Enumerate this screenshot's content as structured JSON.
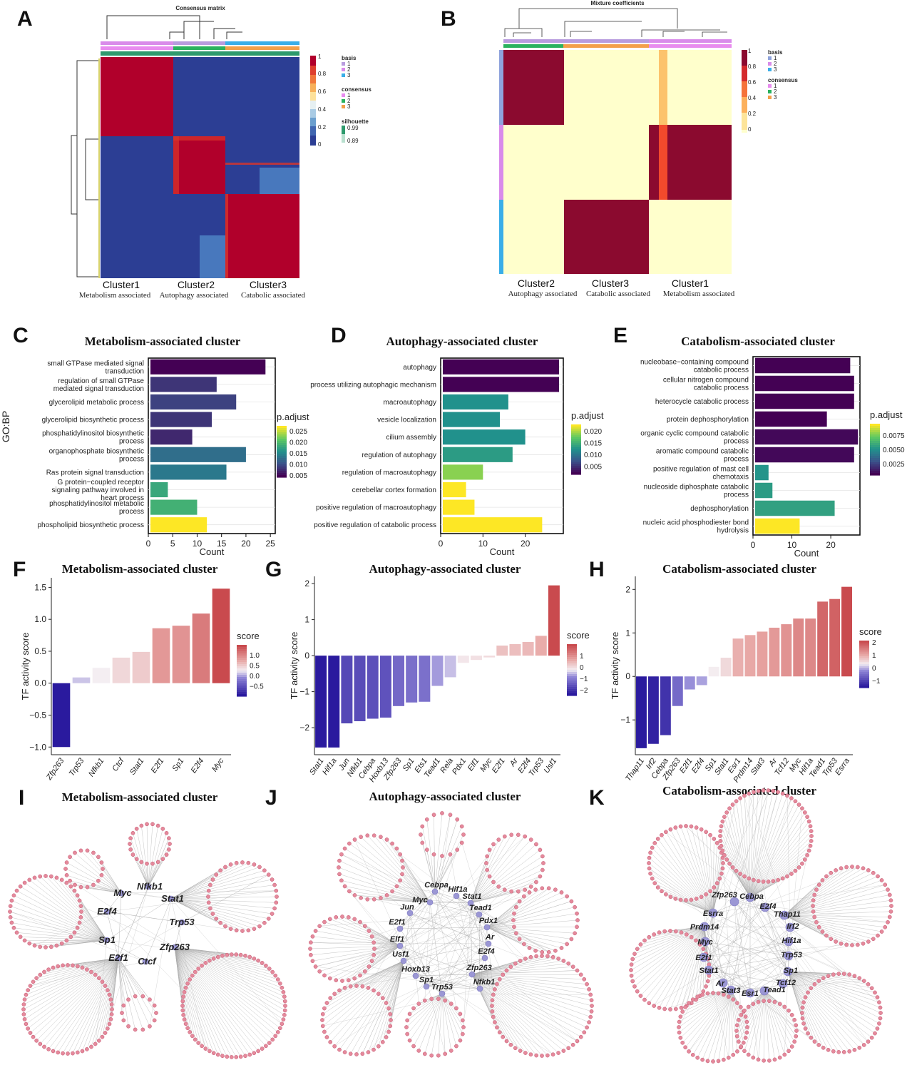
{
  "panels": {
    "A": "A",
    "B": "B",
    "C": "C",
    "D": "D",
    "E": "E",
    "F": "F",
    "G": "G",
    "H": "H",
    "I": "I",
    "J": "J",
    "K": "K"
  },
  "colors": {
    "heatBlue": "#2c3e94",
    "heatRed": "#b1002b",
    "heatCream": "#ffffcc",
    "heatDarkRed": "#8b0a2f",
    "nodeTF": "#9b97d4",
    "nodeGene": "#e58a9c",
    "edge": "#9b9b9b"
  },
  "chart_data": [
    {
      "id": "A",
      "type": "heatmap",
      "title": "Consensus matrix",
      "clusters": [
        {
          "name": "Cluster1",
          "desc": "Metabolism associated"
        },
        {
          "name": "Cluster2",
          "desc": "Autophagy associated"
        },
        {
          "name": "Cluster3",
          "desc": "Catabolic associated"
        }
      ],
      "colorbar": {
        "ticks": [
          "1",
          "0.8",
          "0.6",
          "0.4",
          "0.2",
          "0"
        ]
      },
      "legend": {
        "basis": {
          "title": "basis",
          "items": [
            "1",
            "2",
            "3"
          ]
        },
        "consensus": {
          "title": "consensus",
          "items": [
            "1",
            "2",
            "3"
          ]
        },
        "silhouette": {
          "title": "silhouette",
          "items": [
            "0.99",
            "0.89"
          ]
        }
      }
    },
    {
      "id": "B",
      "type": "heatmap",
      "title": "Mixture coefficients",
      "clusters": [
        {
          "name": "Cluster2",
          "desc": "Autophagy associated"
        },
        {
          "name": "Cluster3",
          "desc": "Catabolic associated"
        },
        {
          "name": "Cluster1",
          "desc": "Metabolism associated"
        }
      ],
      "colorbar": {
        "ticks": [
          "1",
          "0.8",
          "0.6",
          "0.4",
          "0.2",
          "0"
        ]
      },
      "legend": {
        "basis": {
          "title": "basis",
          "items": [
            "1",
            "2",
            "3"
          ]
        },
        "consensus": {
          "title": "consensus",
          "items": [
            "1",
            "2",
            "3"
          ]
        }
      }
    },
    {
      "id": "C",
      "type": "bar",
      "orientation": "horizontal",
      "title": "Metabolism-associated cluster",
      "ylabel": "GO:BP",
      "xlabel": "Count",
      "xlim": [
        0,
        26
      ],
      "xticks": [
        0,
        5,
        10,
        15,
        20,
        25
      ],
      "legend": {
        "title": "p.adjust",
        "ticks": [
          "0.025",
          "0.020",
          "0.015",
          "0.010",
          "0.005"
        ]
      },
      "categories": [
        "small GTPase mediated signal transduction",
        "regulation of small GTPase mediated signal transduction",
        "glycerolipid metabolic process",
        "glycerolipid biosynthetic process",
        "phosphatidylinositol biosynthetic process",
        "organophosphate biosynthetic process",
        "Ras protein signal transduction",
        "G protein−coupled receptor signaling pathway involved in heart process",
        "phosphatidylinositol metabolic process",
        "phospholipid biosynthetic process"
      ],
      "values": [
        24,
        14,
        18,
        13,
        9,
        20,
        16,
        4,
        10,
        12
      ],
      "padjust": [
        0.002,
        0.006,
        0.007,
        0.006,
        0.005,
        0.011,
        0.012,
        0.017,
        0.018,
        0.027
      ]
    },
    {
      "id": "D",
      "type": "bar",
      "orientation": "horizontal",
      "title": "Autophagy-associated cluster",
      "xlabel": "Count",
      "xlim": [
        0,
        29
      ],
      "xticks": [
        0,
        10,
        20
      ],
      "legend": {
        "title": "p.adjust",
        "ticks": [
          "0.020",
          "0.015",
          "0.010",
          "0.005"
        ]
      },
      "categories": [
        "autophagy",
        "process utilizing autophagic mechanism",
        "macroautophagy",
        "vesicle localization",
        "cilium assembly",
        "regulation of autophagy",
        "regulation of macroautophagy",
        "cerebellar cortex formation",
        "positive regulation of macroautophagy",
        "positive regulation of catabolic process"
      ],
      "values": [
        28,
        28,
        16,
        14,
        20,
        17,
        10,
        6,
        8,
        24
      ],
      "padjust": [
        0.001,
        0.001,
        0.012,
        0.012,
        0.012,
        0.013,
        0.019,
        0.023,
        0.023,
        0.023
      ]
    },
    {
      "id": "E",
      "type": "bar",
      "orientation": "horizontal",
      "title": "Catabolism-associated cluster",
      "xlabel": "Count",
      "xlim": [
        0,
        27.5
      ],
      "xticks": [
        0,
        10,
        20
      ],
      "legend": {
        "title": "p.adjust",
        "ticks": [
          "0.0075",
          "0.0050",
          "0.0025"
        ]
      },
      "categories": [
        "nucleobase−containing compound catabolic process",
        "cellular nitrogen compound catabolic process",
        "heterocycle catabolic process",
        "protein dephosphorylation",
        "organic cyclic compound catabolic process",
        "aromatic compound catabolic process",
        "positive regulation of mast cell chemotaxis",
        "nucleoside diphosphate catabolic process",
        "dephosphorylation",
        "nucleic acid phosphodiester bond hydrolysis"
      ],
      "values": [
        25,
        26,
        26,
        19,
        27,
        26,
        4,
        5,
        21,
        12
      ],
      "padjust": [
        0.001,
        0.001,
        0.001,
        0.001,
        0.0012,
        0.0012,
        0.0055,
        0.0058,
        0.006,
        0.0098
      ]
    },
    {
      "id": "F",
      "type": "bar",
      "title": "Metabolism-associated cluster",
      "ylabel": "TF activity score",
      "ylim": [
        -1.12,
        1.65
      ],
      "yticks": [
        -1.0,
        -0.5,
        0.0,
        0.5,
        1.0,
        1.5
      ],
      "legend": {
        "title": "score",
        "ticks": [
          "1.0",
          "0.5",
          "0.0",
          "−0.5"
        ]
      },
      "categories": [
        "Zfp263",
        "Trp53",
        "Nfkb1",
        "Ctcf",
        "Stat1",
        "E2f1",
        "Sp1",
        "E2f4",
        "Myc"
      ],
      "values": [
        -1.0,
        0.09,
        0.24,
        0.4,
        0.49,
        0.86,
        0.9,
        1.09,
        1.48
      ]
    },
    {
      "id": "G",
      "type": "bar",
      "title": "Autophagy-associated cluster",
      "ylabel": "TF activity score",
      "ylim": [
        -2.75,
        2.2
      ],
      "yticks": [
        -2,
        -1,
        0,
        1,
        2
      ],
      "legend": {
        "title": "score",
        "ticks": [
          "1",
          "0",
          "−1",
          "−2"
        ]
      },
      "categories": [
        "Stat1",
        "Hif1a",
        "Jun",
        "Nfkb1",
        "Cebpa",
        "Hoxb13",
        "Zfp263",
        "Sp1",
        "Ets1",
        "Tead1",
        "Rela",
        "Pdx1",
        "Elf1",
        "Myc",
        "E2f1",
        "Ar",
        "E2f4",
        "Trp53",
        "Usf1"
      ],
      "values": [
        -2.55,
        -2.55,
        -1.88,
        -1.82,
        -1.75,
        -1.72,
        -1.4,
        -1.3,
        -1.28,
        -0.84,
        -0.6,
        -0.2,
        -0.12,
        -0.05,
        0.28,
        0.32,
        0.38,
        0.55,
        1.95
      ]
    },
    {
      "id": "H",
      "type": "bar",
      "title": "Catabolism-associated cluster",
      "ylabel": "TF activity score",
      "ylim": [
        -1.8,
        2.3
      ],
      "yticks": [
        -1,
        0,
        1,
        2
      ],
      "legend": {
        "title": "score",
        "ticks": [
          "2",
          "1",
          "0",
          "−1"
        ]
      },
      "categories": [
        "Thap11",
        "Irf2",
        "Cebpa",
        "Zfp263",
        "E2f1",
        "E2f4",
        "Sp1",
        "Stat1",
        "Esr1",
        "Prdm14",
        "Stat3",
        "Ar",
        "Tcf12",
        "Myc",
        "Hif1a",
        "Tead1",
        "Trp53",
        "Esrra"
      ],
      "values": [
        -1.65,
        -1.55,
        -1.35,
        -0.68,
        -0.3,
        -0.2,
        0.22,
        0.43,
        0.87,
        0.95,
        1.03,
        1.12,
        1.2,
        1.33,
        1.33,
        1.72,
        1.78,
        2.06
      ]
    },
    {
      "id": "I",
      "type": "network",
      "title": "Metabolism-associated cluster",
      "tfs": [
        "Myc",
        "Nfkb1",
        "Stat1",
        "E2f4",
        "Trp53",
        "Sp1",
        "Zfp263",
        "E2f1",
        "Ctcf"
      ]
    },
    {
      "id": "J",
      "type": "network",
      "title": "Autophagy-associated cluster",
      "tfs": [
        "Cebpa",
        "Hif1a",
        "Myc",
        "Stat1",
        "Tead1",
        "Jun",
        "Pdx1",
        "E2f1",
        "Elf1",
        "Ar",
        "E2f4",
        "Usf1",
        "Hoxb13",
        "Zfp263",
        "Sp1",
        "Nfkb1",
        "Trp53"
      ]
    },
    {
      "id": "K",
      "type": "network",
      "title": "Catabolism-associated cluster",
      "tfs": [
        "Zfp263",
        "Cebpa",
        "E2f4",
        "Esrra",
        "Thap11",
        "Prdm14",
        "Irf2",
        "Myc",
        "Hif1a",
        "E2f1",
        "Trp53",
        "Stat1",
        "Sp1",
        "Ar",
        "Tcf12",
        "Stat3",
        "Esr1",
        "Tead1"
      ]
    }
  ]
}
